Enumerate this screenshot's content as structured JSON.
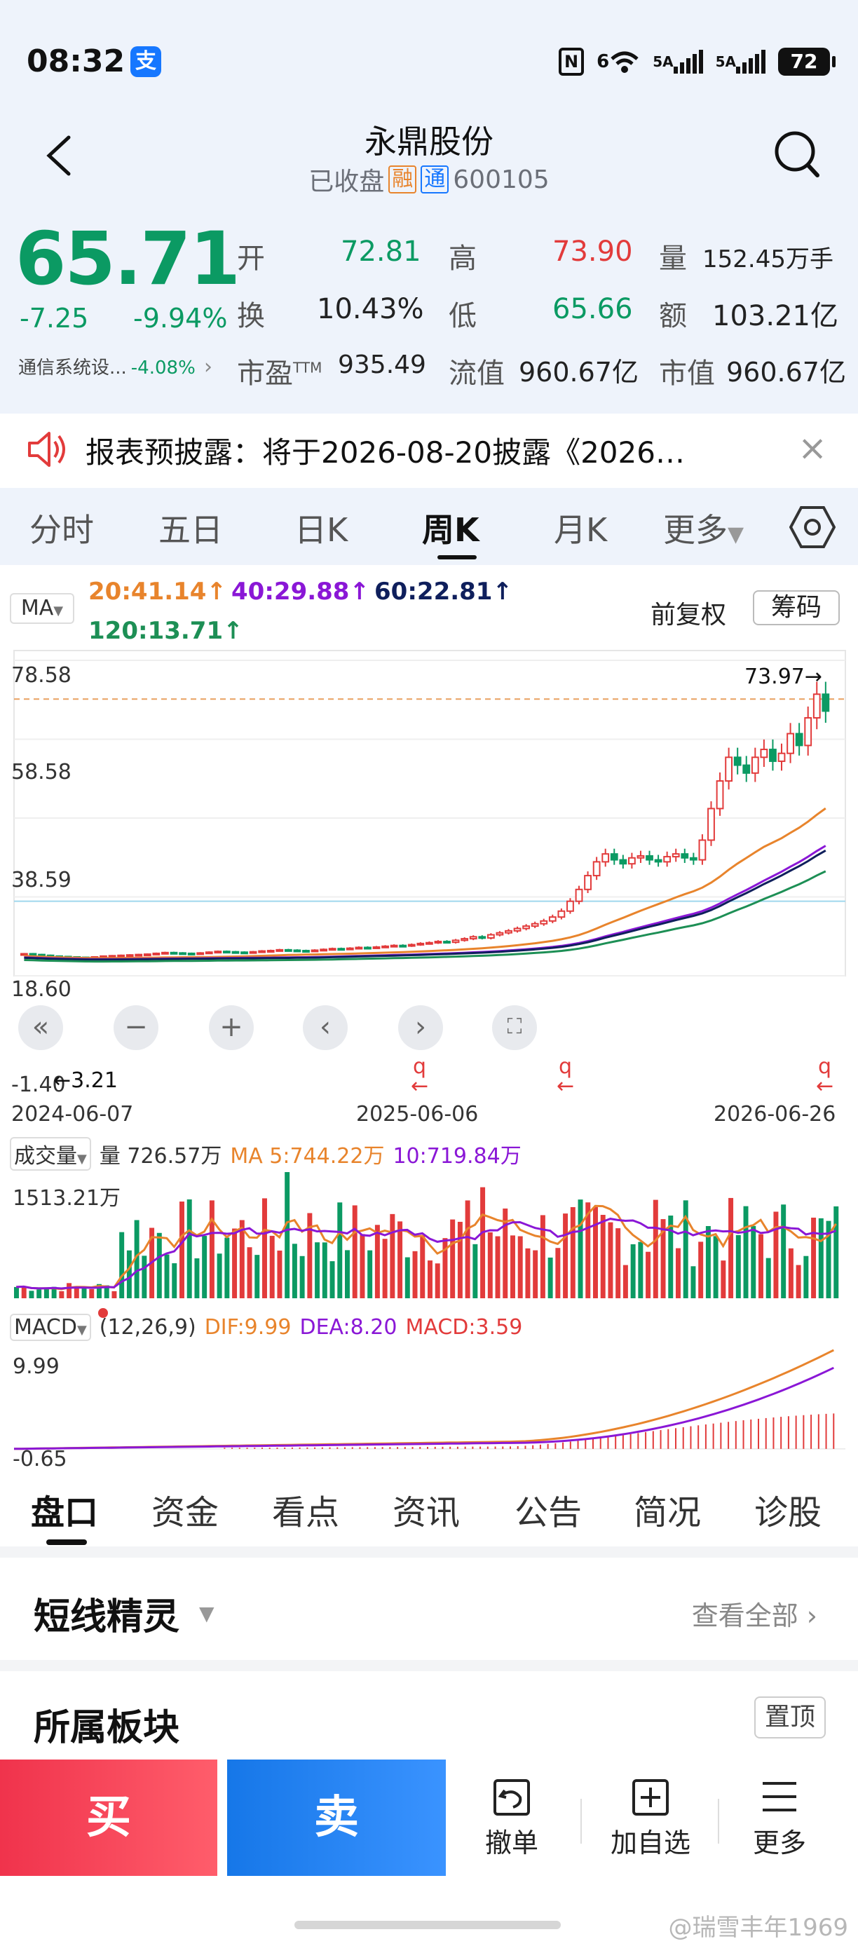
{
  "status": {
    "time": "08:32",
    "alipay": "支",
    "nfc": "N",
    "wifi": "6",
    "sig1": "5A",
    "sig2": "5A",
    "battery": "72"
  },
  "header": {
    "title": "永鼎股份",
    "state": "已收盘",
    "tag1": "融",
    "tag2": "通",
    "code": "600105"
  },
  "quote": {
    "price": "65.71",
    "change": "-7.25",
    "change_pct": "-9.94%",
    "sector_name": "通信系统设...",
    "sector_pct": "-4.08%",
    "open_label": "开",
    "open": "72.81",
    "high_label": "高",
    "high": "73.90",
    "vol_label": "量",
    "vol": "152.45万手",
    "turn_label": "换",
    "turn": "10.43%",
    "low_label": "低",
    "low": "65.66",
    "amt_label": "额",
    "amt": "103.21亿",
    "pe_label": "市盈",
    "pe_sup": "TTM",
    "pe": "935.49",
    "float_label": "流值",
    "float": "960.67亿",
    "mcap_label": "市值",
    "mcap": "960.67亿"
  },
  "notice": {
    "text": "报表预披露：将于2026-08-20披露《2026…",
    "close": "×"
  },
  "tabs": [
    "分时",
    "五日",
    "日K",
    "周K",
    "月K",
    "更多"
  ],
  "chart": {
    "ma_btn": "MA",
    "ma20": "20:41.14↑",
    "ma40": "40:29.88↑",
    "ma60": "60:22.81↑",
    "ma120": "120:13.71↑",
    "fq": "前复权",
    "cm": "筹码",
    "ylabels": [
      "78.58",
      "58.58",
      "38.59",
      "18.60",
      "-1.40"
    ],
    "max_label": "73.97→",
    "min_label": "←3.21",
    "dates": [
      "2024-06-07",
      "2025-06-06",
      "2026-06-26"
    ],
    "q_mark": "q",
    "arrow": "←",
    "vol_btn": "成交量",
    "vol_now": "量 726.57万",
    "vol_ma5": "MA 5:744.22万",
    "vol_ma10": "10:719.84万",
    "vol_max": "1513.21万",
    "macd_btn": "MACD",
    "macd_params": "(12,26,9)",
    "dif": "DIF:9.99",
    "dea": "DEA:8.20",
    "macd": "MACD:3.59",
    "macd_top": "9.99",
    "macd_bot": "-0.65",
    "zoom": [
      "«",
      "−",
      "+",
      "‹",
      "›"
    ],
    "colors": {
      "up": "#e23b3b",
      "down": "#0b9a63",
      "ma20": "#e8842c",
      "ma40": "#8a17d6",
      "ma60": "#0f1f5c",
      "ma120": "#1d8f55"
    }
  },
  "chart_data": {
    "type": "candlestick",
    "x_ticks": [
      "2024-06-07",
      "2025-06-06",
      "2026-06-26"
    ],
    "ylim": [
      -1.4,
      78.58
    ],
    "y_ticks": [
      78.58,
      58.58,
      38.59,
      18.6,
      -1.4
    ],
    "period_high": 73.97,
    "period_low": 3.21,
    "close_approx": [
      4.2,
      4.0,
      3.8,
      3.6,
      3.5,
      3.4,
      3.3,
      3.21,
      3.4,
      3.6,
      3.7,
      3.8,
      3.9,
      4.0,
      4.1,
      4.3,
      4.5,
      4.4,
      4.3,
      4.2,
      4.4,
      4.6,
      4.8,
      4.7,
      4.6,
      4.5,
      4.7,
      4.9,
      5.0,
      5.2,
      5.1,
      5.0,
      4.9,
      5.1,
      5.3,
      5.5,
      5.4,
      5.6,
      5.8,
      5.7,
      5.9,
      6.1,
      6.3,
      6.2,
      6.5,
      6.8,
      7.0,
      7.3,
      7.1,
      7.6,
      8.0,
      8.5,
      8.2,
      9.0,
      9.5,
      10.0,
      10.6,
      11.2,
      11.8,
      12.5,
      13.5,
      15.0,
      17.5,
      20.5,
      24.0,
      27.5,
      29.5,
      28.0,
      27.0,
      28.5,
      29.0,
      28.0,
      27.5,
      28.8,
      29.5,
      28.5,
      28.0,
      33.0,
      41.0,
      48.0,
      54.0,
      52.0,
      50.0,
      54.0,
      56.0,
      53.0,
      55.0,
      60.0,
      57.0,
      64.0,
      70.0,
      65.71
    ],
    "ma20": 41.14,
    "ma40": 29.88,
    "ma60": 22.81,
    "ma120": 13.71,
    "volume_last": "726.57万",
    "volume_ma5": "744.22万",
    "volume_ma10": "719.84万",
    "volume_max": "1513.21万",
    "macd": {
      "params": "(12,26,9)",
      "dif": 9.99,
      "dea": 8.2,
      "macd": 3.59,
      "ylim": [
        -0.65,
        9.99
      ]
    }
  },
  "bottom_tabs": [
    "盘口",
    "资金",
    "看点",
    "资讯",
    "公告",
    "简况",
    "诊股"
  ],
  "sections": {
    "s1_title": "短线精灵",
    "s1_link": "查看全部",
    "s2_title": "所属板块",
    "s2_btn": "置顶"
  },
  "actions": {
    "buy": "买",
    "sell": "卖",
    "cancel": "撤单",
    "add": "加自选",
    "more": "更多"
  },
  "watermark": "@瑞雪丰年1969"
}
